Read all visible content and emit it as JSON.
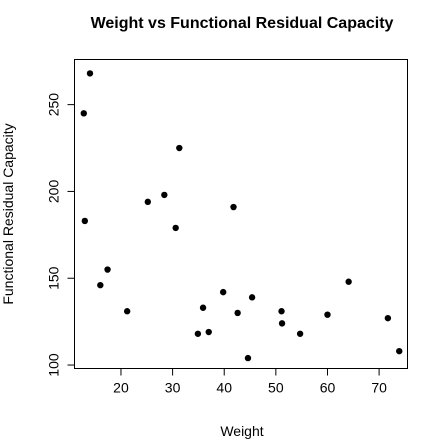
{
  "chart_data": {
    "type": "scatter",
    "title": "Weight vs Functional Residual Capacity",
    "xlabel": "Weight",
    "ylabel": "Functional Residual Capacity",
    "xlim": [
      11,
      75.5
    ],
    "ylim": [
      98,
      276
    ],
    "x_ticks": [
      20,
      30,
      40,
      50,
      60,
      70
    ],
    "y_ticks": [
      100,
      150,
      200,
      250
    ],
    "grid": false,
    "legend": "none",
    "point_color": "#000000",
    "points": [
      {
        "x": 14.0,
        "y": 268
      },
      {
        "x": 12.8,
        "y": 245
      },
      {
        "x": 31.3,
        "y": 225
      },
      {
        "x": 13.0,
        "y": 183
      },
      {
        "x": 28.4,
        "y": 198
      },
      {
        "x": 25.2,
        "y": 194
      },
      {
        "x": 41.8,
        "y": 191
      },
      {
        "x": 30.6,
        "y": 179
      },
      {
        "x": 17.4,
        "y": 155
      },
      {
        "x": 16.0,
        "y": 146
      },
      {
        "x": 64.1,
        "y": 148
      },
      {
        "x": 39.8,
        "y": 142
      },
      {
        "x": 45.4,
        "y": 139
      },
      {
        "x": 21.2,
        "y": 131
      },
      {
        "x": 35.9,
        "y": 133
      },
      {
        "x": 42.6,
        "y": 130
      },
      {
        "x": 51.1,
        "y": 131
      },
      {
        "x": 60.0,
        "y": 129
      },
      {
        "x": 71.7,
        "y": 127
      },
      {
        "x": 51.2,
        "y": 124
      },
      {
        "x": 34.9,
        "y": 118
      },
      {
        "x": 37.0,
        "y": 119
      },
      {
        "x": 54.7,
        "y": 118
      },
      {
        "x": 73.9,
        "y": 108
      },
      {
        "x": 44.6,
        "y": 104
      }
    ]
  }
}
